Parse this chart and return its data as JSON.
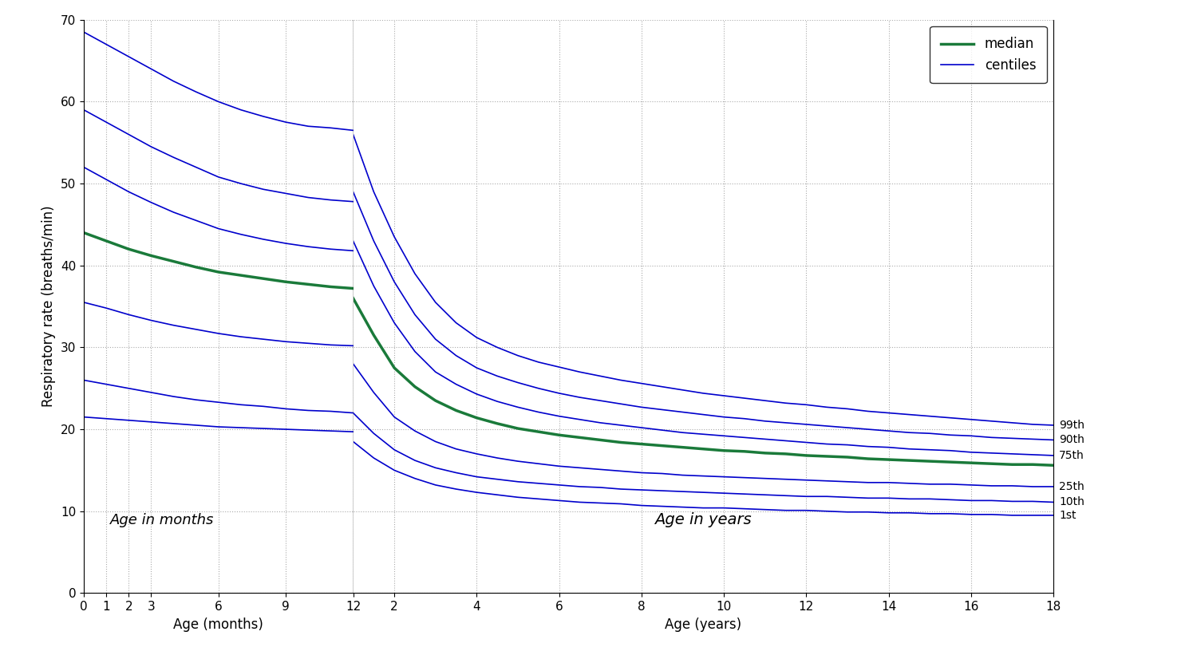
{
  "background_color": "#ffffff",
  "centile_color": "#0000cc",
  "median_color": "#1a7a3a",
  "centile_linewidth": 1.2,
  "median_linewidth": 2.5,
  "ylabel": "Respiratory rate (breaths/min)",
  "xlabel_months": "Age (months)",
  "xlabel_years": "Age (years)",
  "label_months": "Age in months",
  "label_years": "Age in years",
  "ylim": [
    0,
    70
  ],
  "yticks": [
    0,
    10,
    20,
    30,
    40,
    50,
    60,
    70
  ],
  "months_xticks": [
    0,
    1,
    2,
    3,
    6,
    9,
    12
  ],
  "years_xticks": [
    2,
    4,
    6,
    8,
    10,
    12,
    14,
    16,
    18
  ],
  "centile_labels": [
    "99th",
    "90th",
    "75th",
    "25th",
    "10th",
    "1st"
  ],
  "legend_labels": [
    "median",
    "centiles"
  ],
  "grid_color": "#aaaaaa",
  "grid_linestyle": ":",
  "grid_linewidth": 0.8,
  "months_x": [
    0,
    1,
    2,
    3,
    4,
    5,
    6,
    7,
    8,
    9,
    10,
    11,
    12
  ],
  "months_centile99": [
    68.5,
    67.0,
    65.5,
    64.0,
    62.5,
    61.2,
    60.0,
    59.0,
    58.2,
    57.5,
    57.0,
    56.8,
    56.5
  ],
  "months_centile90": [
    59.0,
    57.5,
    56.0,
    54.5,
    53.2,
    52.0,
    50.8,
    50.0,
    49.3,
    48.8,
    48.3,
    48.0,
    47.8
  ],
  "months_centile75": [
    52.0,
    50.5,
    49.0,
    47.7,
    46.5,
    45.5,
    44.5,
    43.8,
    43.2,
    42.7,
    42.3,
    42.0,
    41.8
  ],
  "months_median": [
    44.0,
    43.0,
    42.0,
    41.2,
    40.5,
    39.8,
    39.2,
    38.8,
    38.4,
    38.0,
    37.7,
    37.4,
    37.2
  ],
  "months_centile25": [
    35.5,
    34.8,
    34.0,
    33.3,
    32.7,
    32.2,
    31.7,
    31.3,
    31.0,
    30.7,
    30.5,
    30.3,
    30.2
  ],
  "months_centile10": [
    26.0,
    25.5,
    25.0,
    24.5,
    24.0,
    23.6,
    23.3,
    23.0,
    22.8,
    22.5,
    22.3,
    22.2,
    22.0
  ],
  "months_centile1": [
    21.5,
    21.3,
    21.1,
    20.9,
    20.7,
    20.5,
    20.3,
    20.2,
    20.1,
    20.0,
    19.9,
    19.8,
    19.7
  ],
  "years_x": [
    1.0,
    1.5,
    2.0,
    2.5,
    3.0,
    3.5,
    4.0,
    4.5,
    5.0,
    5.5,
    6.0,
    6.5,
    7.0,
    7.5,
    8.0,
    8.5,
    9.0,
    9.5,
    10.0,
    10.5,
    11.0,
    11.5,
    12.0,
    12.5,
    13.0,
    13.5,
    14.0,
    14.5,
    15.0,
    15.5,
    16.0,
    16.5,
    17.0,
    17.5,
    18.0
  ],
  "years_centile99": [
    56.0,
    49.0,
    43.5,
    39.0,
    35.5,
    33.0,
    31.2,
    30.0,
    29.0,
    28.2,
    27.6,
    27.0,
    26.5,
    26.0,
    25.6,
    25.2,
    24.8,
    24.4,
    24.1,
    23.8,
    23.5,
    23.2,
    23.0,
    22.7,
    22.5,
    22.2,
    22.0,
    21.8,
    21.6,
    21.4,
    21.2,
    21.0,
    20.8,
    20.6,
    20.5
  ],
  "years_centile90": [
    49.0,
    43.0,
    38.0,
    34.0,
    31.0,
    29.0,
    27.5,
    26.5,
    25.7,
    25.0,
    24.4,
    23.9,
    23.5,
    23.1,
    22.7,
    22.4,
    22.1,
    21.8,
    21.5,
    21.3,
    21.0,
    20.8,
    20.6,
    20.4,
    20.2,
    20.0,
    19.8,
    19.6,
    19.5,
    19.3,
    19.2,
    19.0,
    18.9,
    18.8,
    18.7
  ],
  "years_centile75": [
    43.0,
    37.5,
    33.0,
    29.5,
    27.0,
    25.5,
    24.3,
    23.4,
    22.7,
    22.1,
    21.6,
    21.2,
    20.8,
    20.5,
    20.2,
    19.9,
    19.6,
    19.4,
    19.2,
    19.0,
    18.8,
    18.6,
    18.4,
    18.2,
    18.1,
    17.9,
    17.8,
    17.6,
    17.5,
    17.4,
    17.2,
    17.1,
    17.0,
    16.9,
    16.8
  ],
  "years_median": [
    36.0,
    31.5,
    27.5,
    25.2,
    23.5,
    22.3,
    21.4,
    20.7,
    20.1,
    19.7,
    19.3,
    19.0,
    18.7,
    18.4,
    18.2,
    18.0,
    17.8,
    17.6,
    17.4,
    17.3,
    17.1,
    17.0,
    16.8,
    16.7,
    16.6,
    16.4,
    16.3,
    16.2,
    16.1,
    16.0,
    15.9,
    15.8,
    15.7,
    15.7,
    15.6
  ],
  "years_centile25": [
    28.0,
    24.5,
    21.5,
    19.8,
    18.5,
    17.6,
    17.0,
    16.5,
    16.1,
    15.8,
    15.5,
    15.3,
    15.1,
    14.9,
    14.7,
    14.6,
    14.4,
    14.3,
    14.2,
    14.1,
    14.0,
    13.9,
    13.8,
    13.7,
    13.6,
    13.5,
    13.5,
    13.4,
    13.3,
    13.3,
    13.2,
    13.1,
    13.1,
    13.0,
    13.0
  ],
  "years_centile10": [
    22.0,
    19.5,
    17.5,
    16.2,
    15.3,
    14.7,
    14.2,
    13.9,
    13.6,
    13.4,
    13.2,
    13.0,
    12.9,
    12.7,
    12.6,
    12.5,
    12.4,
    12.3,
    12.2,
    12.1,
    12.0,
    11.9,
    11.8,
    11.8,
    11.7,
    11.6,
    11.6,
    11.5,
    11.5,
    11.4,
    11.3,
    11.3,
    11.2,
    11.2,
    11.1
  ],
  "years_centile1": [
    18.5,
    16.5,
    15.0,
    14.0,
    13.2,
    12.7,
    12.3,
    12.0,
    11.7,
    11.5,
    11.3,
    11.1,
    11.0,
    10.9,
    10.7,
    10.6,
    10.5,
    10.4,
    10.4,
    10.3,
    10.2,
    10.1,
    10.1,
    10.0,
    9.9,
    9.9,
    9.8,
    9.8,
    9.7,
    9.7,
    9.6,
    9.6,
    9.5,
    9.5,
    9.5
  ]
}
